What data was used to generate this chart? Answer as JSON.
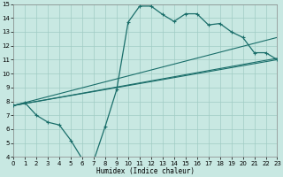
{
  "xlabel": "Humidex (Indice chaleur)",
  "bg_color": "#c8e8e2",
  "grid_color": "#a0ccC4",
  "line_color": "#1a6e6a",
  "xlim": [
    0,
    23
  ],
  "ylim": [
    4,
    15
  ],
  "xticks": [
    0,
    1,
    2,
    3,
    4,
    5,
    6,
    7,
    8,
    9,
    10,
    11,
    12,
    13,
    14,
    15,
    16,
    17,
    18,
    19,
    20,
    21,
    22,
    23
  ],
  "yticks": [
    4,
    5,
    6,
    7,
    8,
    9,
    10,
    11,
    12,
    13,
    14,
    15
  ],
  "main_x": [
    0,
    1,
    2,
    3,
    4,
    5,
    6,
    7,
    8,
    9,
    10,
    11,
    12,
    13,
    14,
    15,
    16,
    17,
    18,
    19,
    20,
    21,
    22,
    23
  ],
  "main_y": [
    7.7,
    7.9,
    7.0,
    6.5,
    6.3,
    5.2,
    3.85,
    3.75,
    6.2,
    8.85,
    13.7,
    14.85,
    14.85,
    14.25,
    13.75,
    14.3,
    14.3,
    13.5,
    13.6,
    13.0,
    12.6,
    11.5,
    11.5,
    11.0
  ],
  "trend1_x": [
    0,
    23
  ],
  "trend1_y": [
    7.7,
    11.0
  ],
  "trend2_x": [
    0,
    23
  ],
  "trend2_y": [
    7.7,
    11.1
  ],
  "trend3_x": [
    0,
    23
  ],
  "trend3_y": [
    7.7,
    12.6
  ]
}
